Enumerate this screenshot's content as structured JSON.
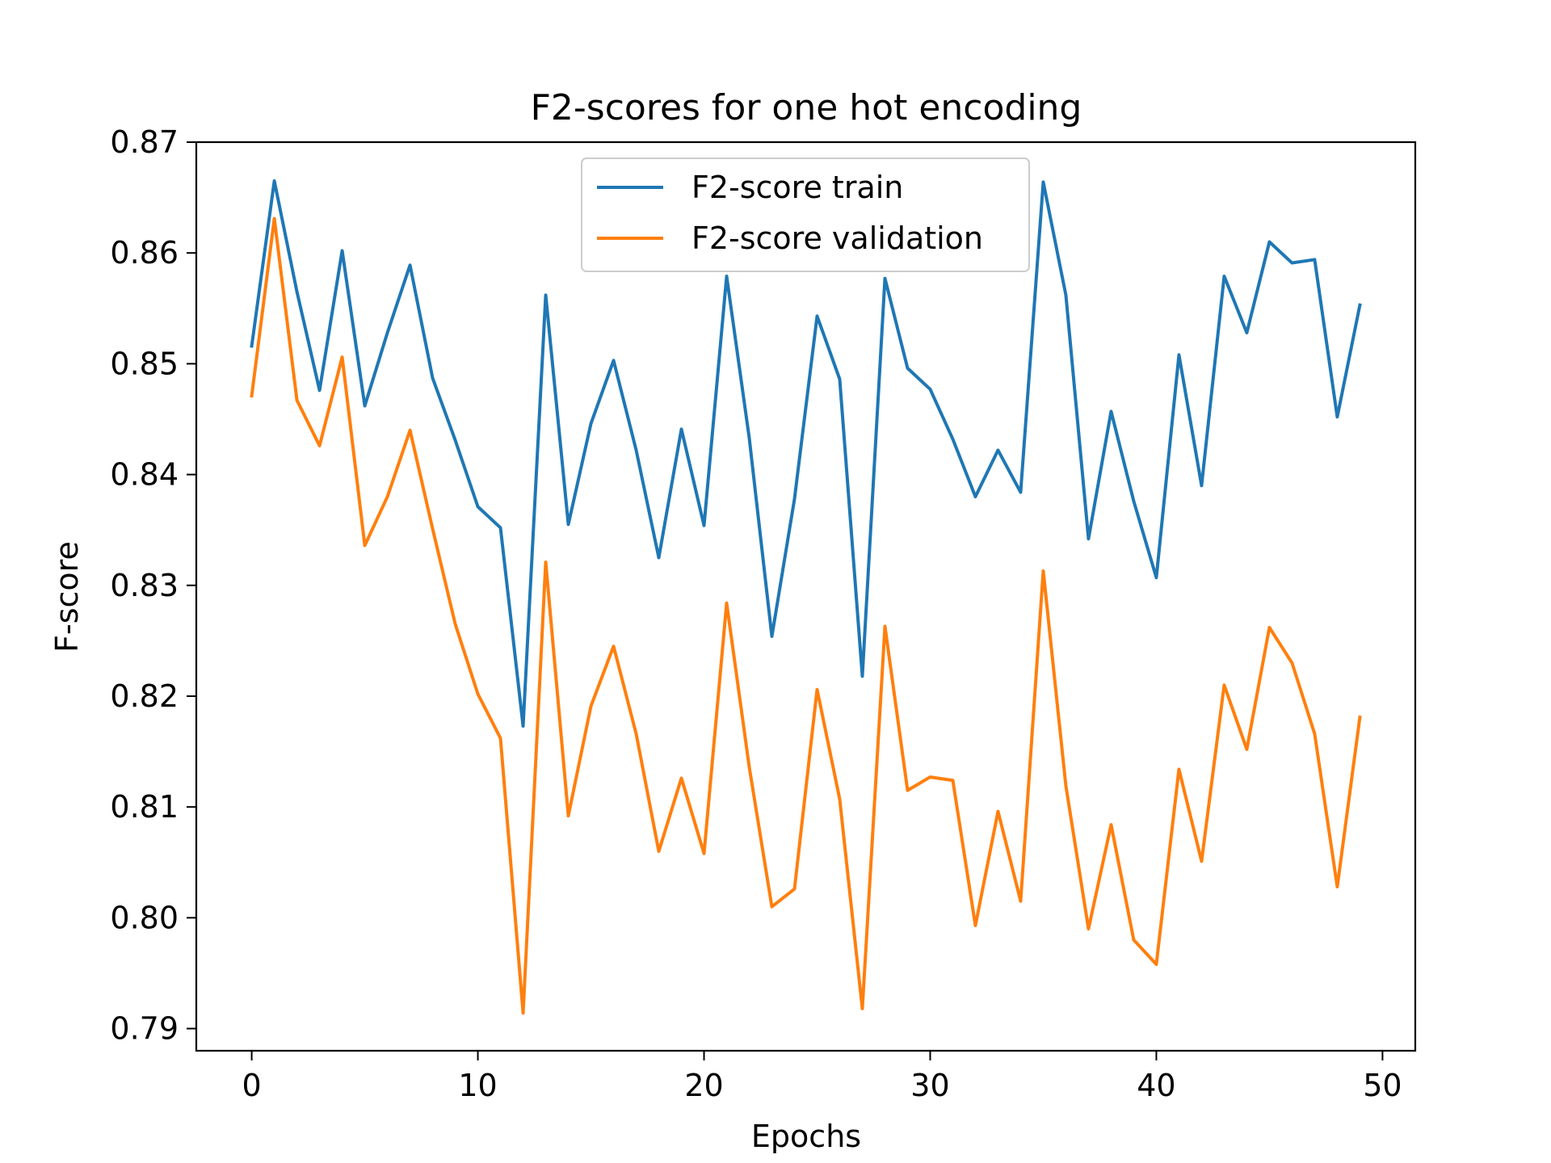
{
  "chart_data": {
    "type": "line",
    "title": "F2-scores for one hot encoding",
    "xlabel": "Epochs",
    "ylabel": "F-score",
    "xlim": [
      -2.45,
      51.45
    ],
    "ylim": [
      0.788,
      0.87
    ],
    "xticks": [
      0,
      10,
      20,
      30,
      40,
      50
    ],
    "xtick_labels": [
      "0",
      "10",
      "20",
      "30",
      "40",
      "50"
    ],
    "yticks": [
      0.79,
      0.8,
      0.81,
      0.82,
      0.83,
      0.84,
      0.85,
      0.86,
      0.87
    ],
    "ytick_labels": [
      "0.79",
      "0.80",
      "0.81",
      "0.82",
      "0.83",
      "0.84",
      "0.85",
      "0.86",
      "0.87"
    ],
    "grid": false,
    "legend_position": "top-center",
    "x": [
      0,
      1,
      2,
      3,
      4,
      5,
      6,
      7,
      8,
      9,
      10,
      11,
      12,
      13,
      14,
      15,
      16,
      17,
      18,
      19,
      20,
      21,
      22,
      23,
      24,
      25,
      26,
      27,
      28,
      29,
      30,
      31,
      32,
      33,
      34,
      35,
      36,
      37,
      38,
      39,
      40,
      41,
      42,
      43,
      44,
      45,
      46,
      47,
      48,
      49
    ],
    "series": [
      {
        "name": "F2-score train",
        "color": "#1f77b4",
        "values": [
          0.8516,
          0.8665,
          0.8565,
          0.8476,
          0.8602,
          0.8462,
          0.8528,
          0.8589,
          0.8487,
          0.8431,
          0.8371,
          0.8352,
          0.8173,
          0.8562,
          0.8355,
          0.8446,
          0.8503,
          0.8422,
          0.8325,
          0.8441,
          0.8354,
          0.8579,
          0.8433,
          0.8254,
          0.8378,
          0.8543,
          0.8486,
          0.8218,
          0.8577,
          0.8496,
          0.8477,
          0.8432,
          0.838,
          0.8422,
          0.8384,
          0.8664,
          0.8562,
          0.8342,
          0.8457,
          0.8376,
          0.8307,
          0.8508,
          0.839,
          0.8579,
          0.8528,
          0.861,
          0.8591,
          0.8594,
          0.8452,
          0.8553
        ]
      },
      {
        "name": "F2-score validation",
        "color": "#ff7f0e",
        "values": [
          0.8471,
          0.8631,
          0.8467,
          0.8426,
          0.8506,
          0.8336,
          0.838,
          0.844,
          0.8351,
          0.8265,
          0.8202,
          0.8162,
          0.7914,
          0.8321,
          0.8092,
          0.8191,
          0.8245,
          0.8166,
          0.806,
          0.8126,
          0.8058,
          0.8284,
          0.8136,
          0.801,
          0.8026,
          0.8206,
          0.8107,
          0.7918,
          0.8263,
          0.8115,
          0.8127,
          0.8124,
          0.7993,
          0.8096,
          0.8015,
          0.8313,
          0.8119,
          0.799,
          0.8084,
          0.798,
          0.7958,
          0.8134,
          0.8051,
          0.821,
          0.8152,
          0.8262,
          0.823,
          0.8166,
          0.8028,
          0.8181
        ]
      }
    ]
  }
}
